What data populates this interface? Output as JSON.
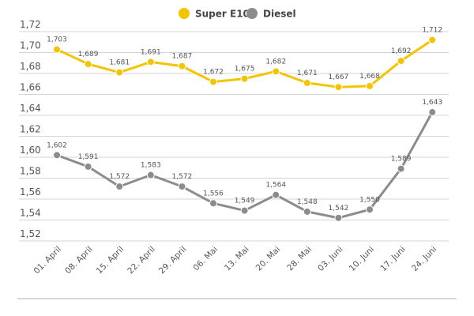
{
  "chart_data": {
    "type": "line",
    "title": "",
    "xlabel": "",
    "ylabel": "",
    "ylim": [
      1.52,
      1.72
    ],
    "yticks": [
      "1,52",
      "1,54",
      "1,56",
      "1,58",
      "1,60",
      "1,62",
      "1,64",
      "1,66",
      "1,68",
      "1,70",
      "1,72"
    ],
    "grid": true,
    "legend_placement": "top-center",
    "categories": [
      "01. April",
      "08. April",
      "15. April",
      "22. April",
      "29. April",
      "06. Mai",
      "13. Mai",
      "20. Mai",
      "28. Mai",
      "03. Juni",
      "10. Juni",
      "17. Juni",
      "24. Juni"
    ],
    "series": [
      {
        "name": "Super E10",
        "color": "#f3c400",
        "values": [
          1.703,
          1.689,
          1.681,
          1.691,
          1.687,
          1.672,
          1.675,
          1.682,
          1.671,
          1.667,
          1.668,
          1.692,
          1.712
        ],
        "labels": [
          "1,703",
          "1,689",
          "1,681",
          "1,691",
          "1,687",
          "1,672",
          "1,675",
          "1,682",
          "1,671",
          "1,667",
          "1,668",
          "1,692",
          "1,712"
        ]
      },
      {
        "name": "Diesel",
        "color": "#8c8c8c",
        "values": [
          1.602,
          1.591,
          1.572,
          1.583,
          1.572,
          1.556,
          1.549,
          1.564,
          1.548,
          1.542,
          1.55,
          1.589,
          1.643
        ],
        "labels": [
          "1,602",
          "1,591",
          "1,572",
          "1,583",
          "1,572",
          "1,556",
          "1,549",
          "1,564",
          "1,548",
          "1,542",
          "1,550",
          "1,589",
          "1,643"
        ]
      }
    ]
  }
}
